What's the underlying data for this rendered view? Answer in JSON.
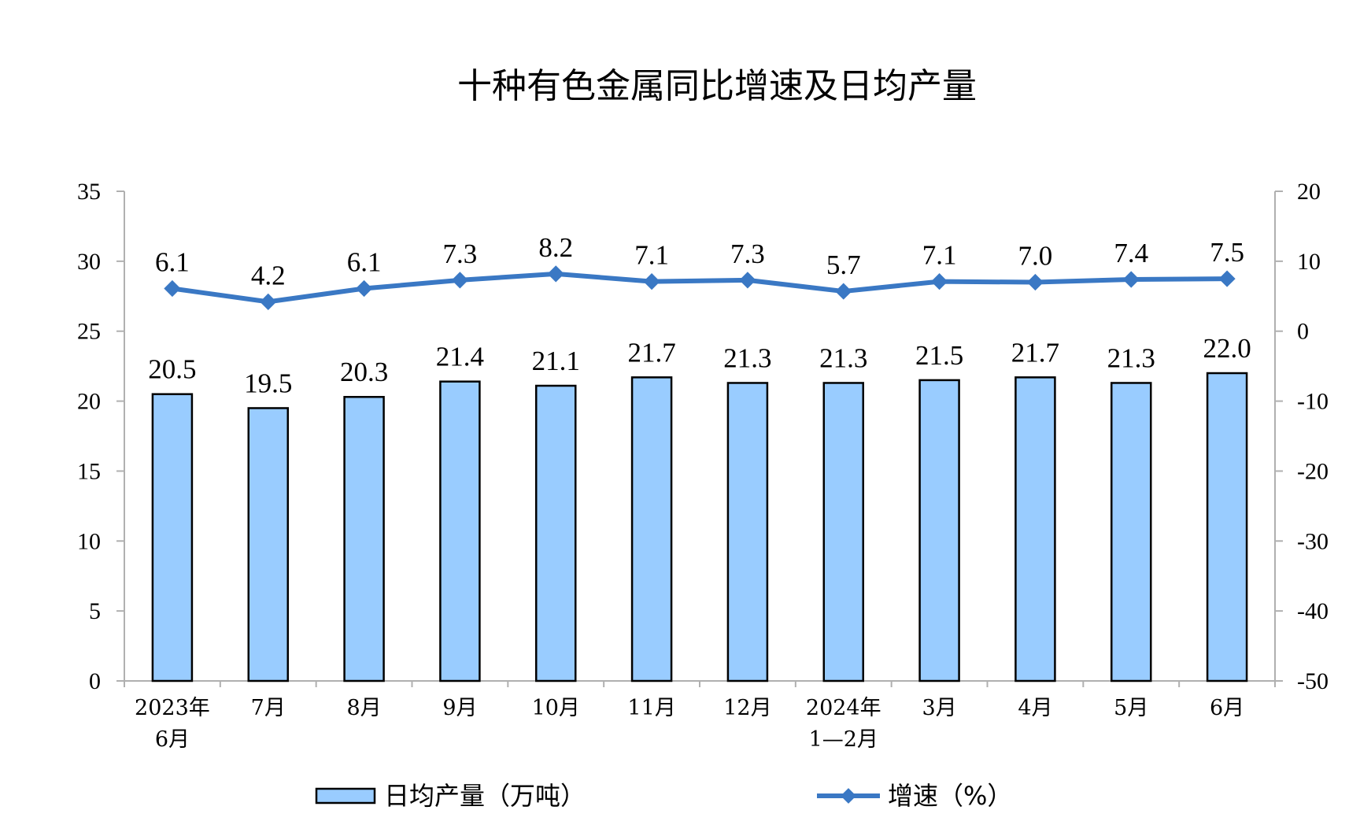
{
  "chart_data": {
    "type": "bar",
    "title": "十种有色金属同比增速及日均产量",
    "categories": [
      [
        "2023年",
        "6月"
      ],
      [
        "7月"
      ],
      [
        "8月"
      ],
      [
        "9月"
      ],
      [
        "10月"
      ],
      [
        "11月"
      ],
      [
        "12月"
      ],
      [
        "2024年",
        "1—2月"
      ],
      [
        "3月"
      ],
      [
        "4月"
      ],
      [
        "5月"
      ],
      [
        "6月"
      ]
    ],
    "series": [
      {
        "name": "日均产量（万吨）",
        "type": "bar",
        "axis": "left",
        "color": "#99ccff",
        "values": [
          20.5,
          19.5,
          20.3,
          21.4,
          21.1,
          21.7,
          21.3,
          21.3,
          21.5,
          21.7,
          21.3,
          22.0
        ]
      },
      {
        "name": "增速（%）",
        "type": "line",
        "axis": "right",
        "color": "#3a78c4",
        "values": [
          6.1,
          4.2,
          6.1,
          7.3,
          8.2,
          7.1,
          7.3,
          5.7,
          7.1,
          7.0,
          7.4,
          7.5
        ]
      }
    ],
    "y_left": {
      "ylim": [
        0,
        35
      ],
      "ticks": [
        0,
        5,
        10,
        15,
        20,
        25,
        30,
        35
      ]
    },
    "y_right": {
      "ylim": [
        -50,
        20
      ],
      "ticks": [
        -50,
        -40,
        -30,
        -20,
        -10,
        0,
        10,
        20
      ]
    },
    "grid": false,
    "legend_position": "bottom"
  }
}
